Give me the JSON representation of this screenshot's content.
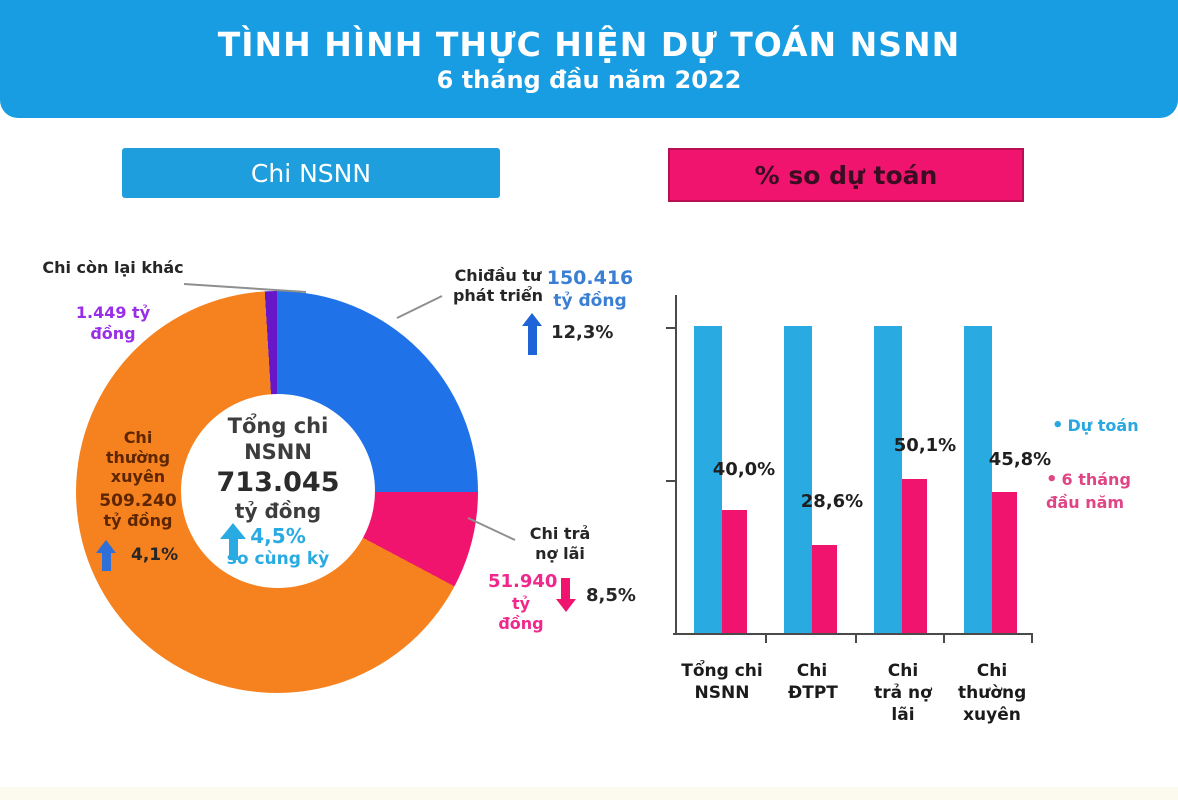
{
  "banner": {
    "title": "TÌNH HÌNH THỰC HIỆN DỰ TOÁN NSNN",
    "subtitle": "6 tháng đầu năm 2022"
  },
  "headers": {
    "left": "Chi NSNN",
    "right": "% so dự toán"
  },
  "palette": {
    "banner_blue": "#189DE2",
    "header_blue": "#1E9EDC",
    "pink": "#F0146E",
    "bar_blue": "#29ABE2",
    "donut_orange": "#F6821F",
    "donut_blue": "#2072E8",
    "donut_purple": "#6716C8",
    "purple_text": "#9A2DE8",
    "blue_value_text": "#3B7FD4",
    "pink_value_text": "#F0288C",
    "cyan_text": "#29ABE2",
    "legend_pink_text": "#E04585"
  },
  "chart_data": [
    {
      "type": "pie",
      "title": "Chi NSNN",
      "unit": "tỷ đồng",
      "center": {
        "line1": "Tổng chi",
        "line2": "NSNN",
        "value": "713.045",
        "unit": "tỷ đồng",
        "change": "4,5%",
        "change_note": "so cùng kỳ",
        "change_dir": "up"
      },
      "segments": [
        {
          "name": "Chi đầu tư phát triển",
          "label": "Chiđầu tư phát triển",
          "value": 150416,
          "value_text": "150.416",
          "unit": "tỷ đồng",
          "change": "12,3%",
          "change_dir": "up",
          "color": "#2072E8",
          "display_deg": [
            0,
            90
          ]
        },
        {
          "name": "Chi trả nợ lãi",
          "label": "Chi trả nợ lãi",
          "value": 51940,
          "value_text": "51.940",
          "unit": "tỷ đồng",
          "change": "8,5%",
          "change_dir": "down",
          "color": "#F0146E",
          "display_deg": [
            90,
            118
          ]
        },
        {
          "name": "Chi thường xuyên",
          "label": "Chi thường xuyên",
          "value": 509240,
          "value_text": "509.240",
          "unit": "tỷ đồng",
          "change": "4,1%",
          "change_dir": "up",
          "color": "#F6821F",
          "display_deg": [
            118,
            356.5
          ]
        },
        {
          "name": "Chi còn lại khác",
          "label": "Chi còn lại khác",
          "value": 1449,
          "value_text": "1.449",
          "unit": "tỷ đồng",
          "color": "#6716C8",
          "display_deg": [
            356.5,
            360
          ]
        }
      ]
    },
    {
      "type": "bar",
      "title": "% so dự toán",
      "categories": [
        "Tổng chi NSNN",
        "Chi ĐTPT",
        "Chi trả nợ lãi",
        "Chi thường xuyên"
      ],
      "series": [
        {
          "name": "Dự toán",
          "color": "#29ABE2",
          "values": [
            100,
            100,
            100,
            100
          ]
        },
        {
          "name": "6 tháng đầu năm",
          "color": "#F0146E",
          "values": [
            40.0,
            28.6,
            50.1,
            45.8
          ]
        }
      ],
      "value_labels": [
        "40,0%",
        "28,6%",
        "50,1%",
        "45,8%"
      ],
      "ylim": [
        0,
        100
      ],
      "grid": false,
      "legend_position": "right"
    }
  ],
  "legend": {
    "items": [
      {
        "label": "Dự toán",
        "color": "#29A8E0"
      },
      {
        "label": "6 tháng đầu năm",
        "color": "#E04585"
      }
    ]
  }
}
